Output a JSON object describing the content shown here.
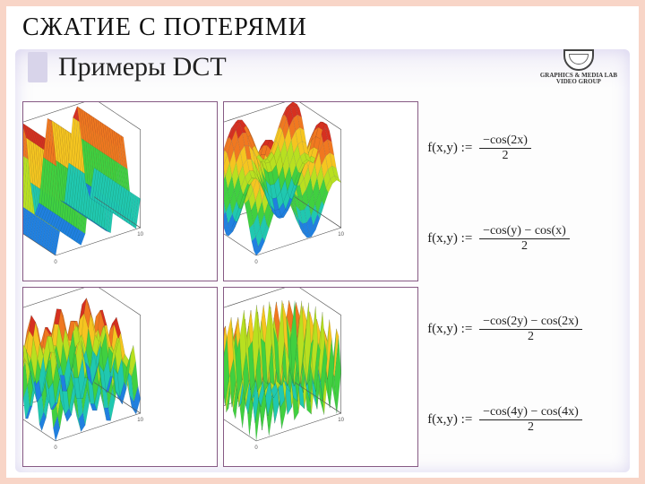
{
  "page": {
    "title": "СЖАТИЕ С ПОТЕРЯМИ"
  },
  "slide": {
    "title": "Примеры DCT",
    "lab_line1": "GRAPHICS & MEDIA LAB",
    "lab_line2": "VIDEO GROUP"
  },
  "frame": {
    "border_color": "#f8d5c7",
    "inner_shadow_color": "#c6bde0"
  },
  "formulas": [
    {
      "lhs": "f(x,y) :=",
      "num": "−cos(2x)",
      "den": "2"
    },
    {
      "lhs": "f(x,y) :=",
      "num": "−cos(y) − cos(x)",
      "den": "2"
    },
    {
      "lhs": "f(x,y) :=",
      "num": "−cos(2y) − cos(2x)",
      "den": "2"
    },
    {
      "lhs": "f(x,y) :=",
      "num": "−cos(4y) − cos(4x)",
      "den": "2"
    }
  ],
  "plots": {
    "common": {
      "x_range": [
        0,
        10
      ],
      "y_range": [
        0,
        10
      ],
      "colormap": [
        "#d63020",
        "#f07820",
        "#f5c520",
        "#b8e020",
        "#40d040",
        "#20c8b0",
        "#2080e0",
        "#3030b0"
      ],
      "mesh_line_color": "#102030",
      "mesh_line_alpha": 0.25,
      "axis_color": "#555555",
      "background_color": "#ffffff",
      "grid_n": 20,
      "tick_fontsize": 6,
      "label_fontsize": 7
    },
    "list": [
      {
        "name": "dct-cos2x",
        "fn": "cos2x",
        "zlim": [
          -0.5,
          0.5
        ],
        "zticks": [
          -0.4,
          -0.2,
          0,
          0.2,
          0.4
        ]
      },
      {
        "name": "dct-sum1",
        "fn": "sum1",
        "zlim": [
          -1.0,
          1.0
        ],
        "zticks": [
          -1,
          -0.5,
          0,
          0.5,
          1
        ]
      },
      {
        "name": "dct-sum2",
        "fn": "sum2",
        "zlim": [
          -1.0,
          1.0
        ],
        "zticks": [
          -1,
          -0.5,
          0,
          0.5,
          1
        ]
      },
      {
        "name": "dct-sum4",
        "fn": "sum4",
        "zlim": [
          -1.0,
          1.0
        ],
        "zticks": [
          -0.5,
          0,
          0.5
        ]
      }
    ]
  }
}
